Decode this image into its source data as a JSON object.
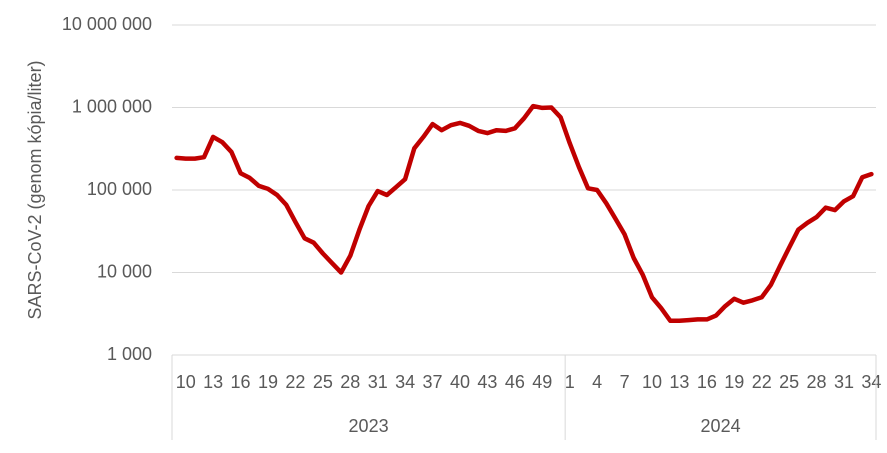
{
  "chart_data": {
    "type": "line",
    "y_label": "SARS-CoV-2 (genom kópia/liter)",
    "log_scale": true,
    "grid": true,
    "ylim": [
      1000,
      10000000
    ],
    "yticks": [
      {
        "value": 1000,
        "label": "1 000"
      },
      {
        "value": 10000,
        "label": "10 000"
      },
      {
        "value": 100000,
        "label": "100 000"
      },
      {
        "value": 1000000,
        "label": "1 000 000"
      },
      {
        "value": 10000000,
        "label": "10 000 000"
      }
    ],
    "categories": [
      null,
      "10",
      null,
      null,
      "13",
      null,
      null,
      "16",
      null,
      null,
      "19",
      null,
      null,
      "22",
      null,
      null,
      "25",
      null,
      null,
      "28",
      null,
      null,
      "31",
      null,
      null,
      "34",
      null,
      null,
      "37",
      null,
      null,
      "40",
      null,
      null,
      "43",
      null,
      null,
      "46",
      null,
      null,
      "49",
      null,
      null,
      "1",
      null,
      null,
      "4",
      null,
      null,
      "7",
      null,
      null,
      "10",
      null,
      null,
      "13",
      null,
      null,
      "16",
      null,
      null,
      "19",
      null,
      null,
      "22",
      null,
      null,
      "25",
      null,
      null,
      "28",
      null,
      null,
      "31",
      null,
      null,
      "34"
    ],
    "groups": [
      {
        "name": "2023",
        "span": 43
      },
      {
        "name": "2024",
        "span": 34
      }
    ],
    "series": [
      {
        "color": "#c00000",
        "values": [
          245000,
          240000,
          240000,
          250000,
          440000,
          380000,
          290000,
          160000,
          140000,
          112000,
          103000,
          87000,
          66000,
          41000,
          26000,
          23000,
          17000,
          13000,
          10000,
          16000,
          33000,
          64000,
          97000,
          87000,
          108000,
          135000,
          320000,
          440000,
          630000,
          530000,
          610000,
          650000,
          600000,
          520000,
          490000,
          530000,
          520000,
          560000,
          740000,
          1040000,
          990000,
          1000000,
          760000,
          370000,
          190000,
          105000,
          100000,
          69000,
          45000,
          29000,
          15000,
          9300,
          5000,
          3700,
          2600,
          2600,
          2650,
          2700,
          2700,
          3000,
          3900,
          4800,
          4300,
          4600,
          5000,
          7100,
          12000,
          20000,
          33000,
          40000,
          47000,
          61000,
          57000,
          73000,
          84000,
          143000,
          156000
        ]
      }
    ]
  }
}
